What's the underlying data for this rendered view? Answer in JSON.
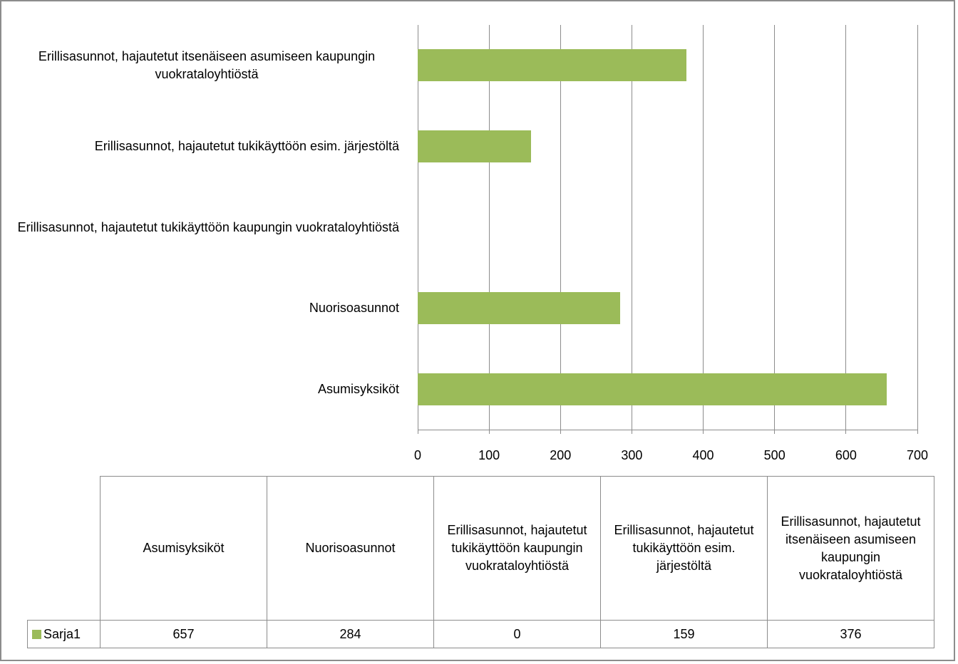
{
  "chart_data": {
    "type": "bar",
    "orientation": "horizontal",
    "categories": [
      "Asumisyksiköt",
      "Nuorisoasunnot",
      "Erillisasunnot, hajautetut tukikäyttöön kaupungin vuokrataloyhtiöstä",
      "Erillisasunnot, hajautetut tukikäyttöön esim. järjestöltä",
      "Erillisasunnot, hajautetut itsenäiseen asumiseen kaupungin vuokrataloyhtiöstä"
    ],
    "series": [
      {
        "name": "Sarja1",
        "color": "#9bbb59",
        "values": [
          657,
          284,
          0,
          159,
          376
        ]
      }
    ],
    "xlim": [
      0,
      700
    ],
    "xticks": [
      0,
      100,
      200,
      300,
      400,
      500,
      600,
      700
    ],
    "grid": true,
    "data_table": true
  }
}
